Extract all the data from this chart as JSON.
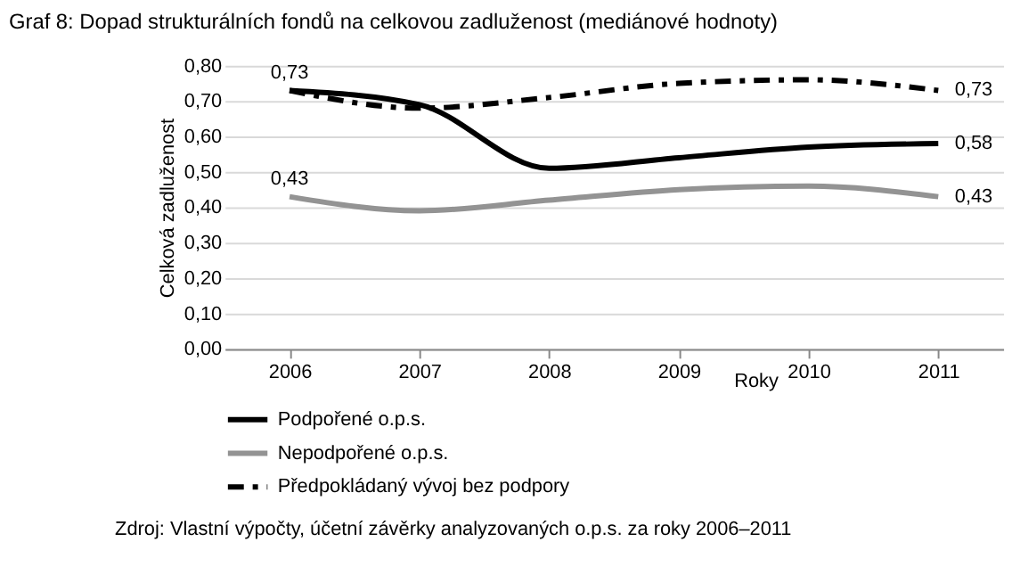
{
  "chart_data": {
    "type": "line",
    "title": "Graf 8: Dopad strukturálních fondů na celkovou zadluženost (mediánové hodnoty)",
    "xlabel": "Roky",
    "ylabel": "Celková zadluženost",
    "categories": [
      "2006",
      "2007",
      "2008",
      "2009",
      "2010",
      "2011"
    ],
    "series": [
      {
        "name": "Podpořené o.p.s.",
        "color": "#000000",
        "line_style": "solid",
        "values": [
          0.73,
          0.69,
          0.51,
          0.54,
          0.57,
          0.58
        ],
        "value_labels": [
          "0,73",
          null,
          null,
          null,
          null,
          "0,58"
        ]
      },
      {
        "name": "Nepodpořené o.p.s.",
        "color": "#939393",
        "line_style": "solid",
        "values": [
          0.43,
          0.39,
          0.42,
          0.45,
          0.46,
          0.43
        ],
        "value_labels": [
          "0,43",
          null,
          null,
          null,
          null,
          "0,43"
        ]
      },
      {
        "name": "Předpokládaný vývoj bez podpory",
        "color": "#000000",
        "line_style": "dashed",
        "values": [
          0.73,
          0.68,
          0.71,
          0.75,
          0.76,
          0.73
        ],
        "value_labels": [
          null,
          null,
          null,
          null,
          null,
          "0,73"
        ]
      }
    ],
    "ylim": [
      0,
      0.8
    ],
    "yticks": [
      {
        "value": 0,
        "label": "0,00"
      },
      {
        "value": 0.1,
        "label": "0,10"
      },
      {
        "value": 0.2,
        "label": "0,20"
      },
      {
        "value": 0.3,
        "label": "0,30"
      },
      {
        "value": 0.4,
        "label": "0,40"
      },
      {
        "value": 0.5,
        "label": "0,50"
      },
      {
        "value": 0.6,
        "label": "0,60"
      },
      {
        "value": 0.7,
        "label": "0,70"
      },
      {
        "value": 0.8,
        "label": "0,80"
      }
    ],
    "grid": "y",
    "legend": "bottom",
    "marker": "none",
    "annotations": [
      "Zdroj: Vlastní výpočty, účetní závěrky analyzovaných o.p.s. za roky 2006–2011"
    ]
  }
}
